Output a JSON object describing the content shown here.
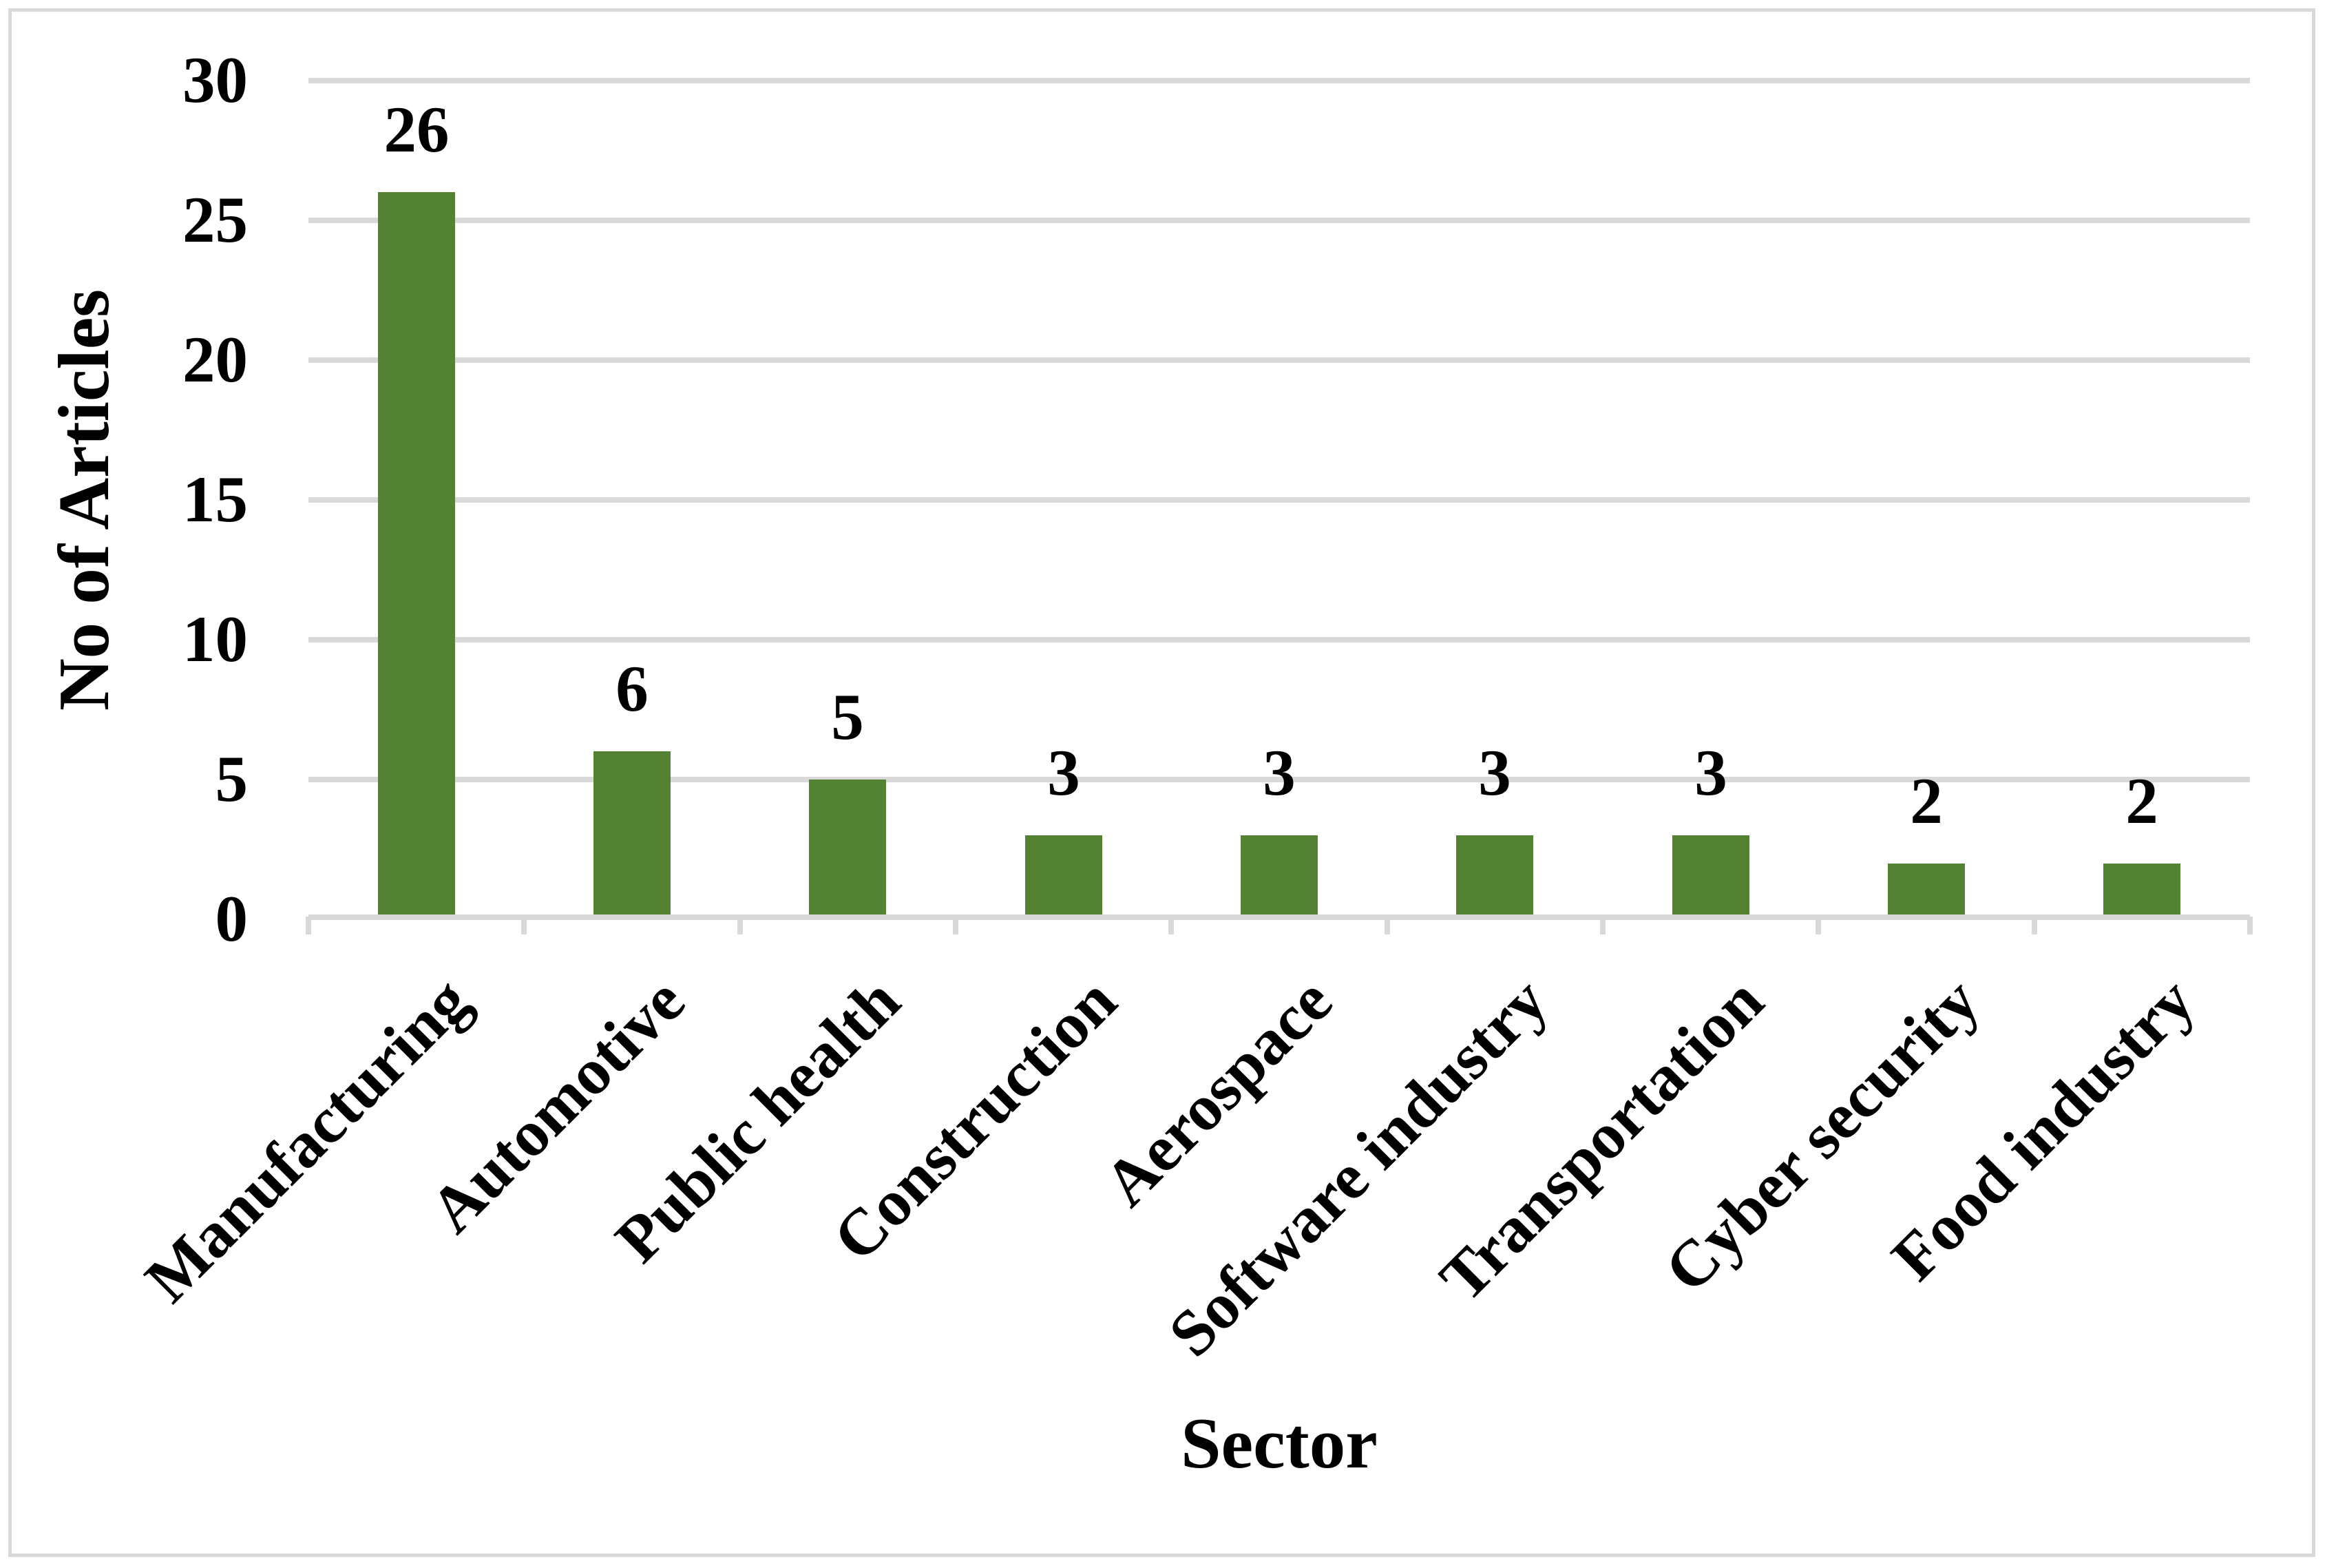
{
  "figure": {
    "background": "#FFFFFF",
    "border_color": "#D9D9D9"
  },
  "chart_data": {
    "type": "bar",
    "title": "",
    "categories": [
      "Manufacturing",
      "Automotive",
      "Public health",
      "Construction",
      "Aerospace",
      "Software industry",
      "Transportation",
      "Cyber security",
      "Food industry"
    ],
    "values": [
      26,
      6,
      5,
      3,
      3,
      3,
      3,
      2,
      2
    ],
    "data_labels": [
      "26",
      "6",
      "5",
      "3",
      "3",
      "3",
      "3",
      "2",
      "2"
    ],
    "xlabel": "Sector",
    "ylabel": "No of Articles",
    "ylim": [
      0,
      30
    ],
    "yticks": [
      0,
      5,
      10,
      15,
      20,
      25,
      30
    ],
    "ytick_labels": [
      "0",
      "5",
      "10",
      "15",
      "20",
      "25",
      "30"
    ],
    "grid": true,
    "legend": "none",
    "data_labels_shown": true,
    "bar_color": "#538234",
    "gridline_color": "#D9D9D9",
    "axis_line_color": "#D9D9D9",
    "tick_color": "#D9D9D9",
    "text_color": "#000000"
  }
}
